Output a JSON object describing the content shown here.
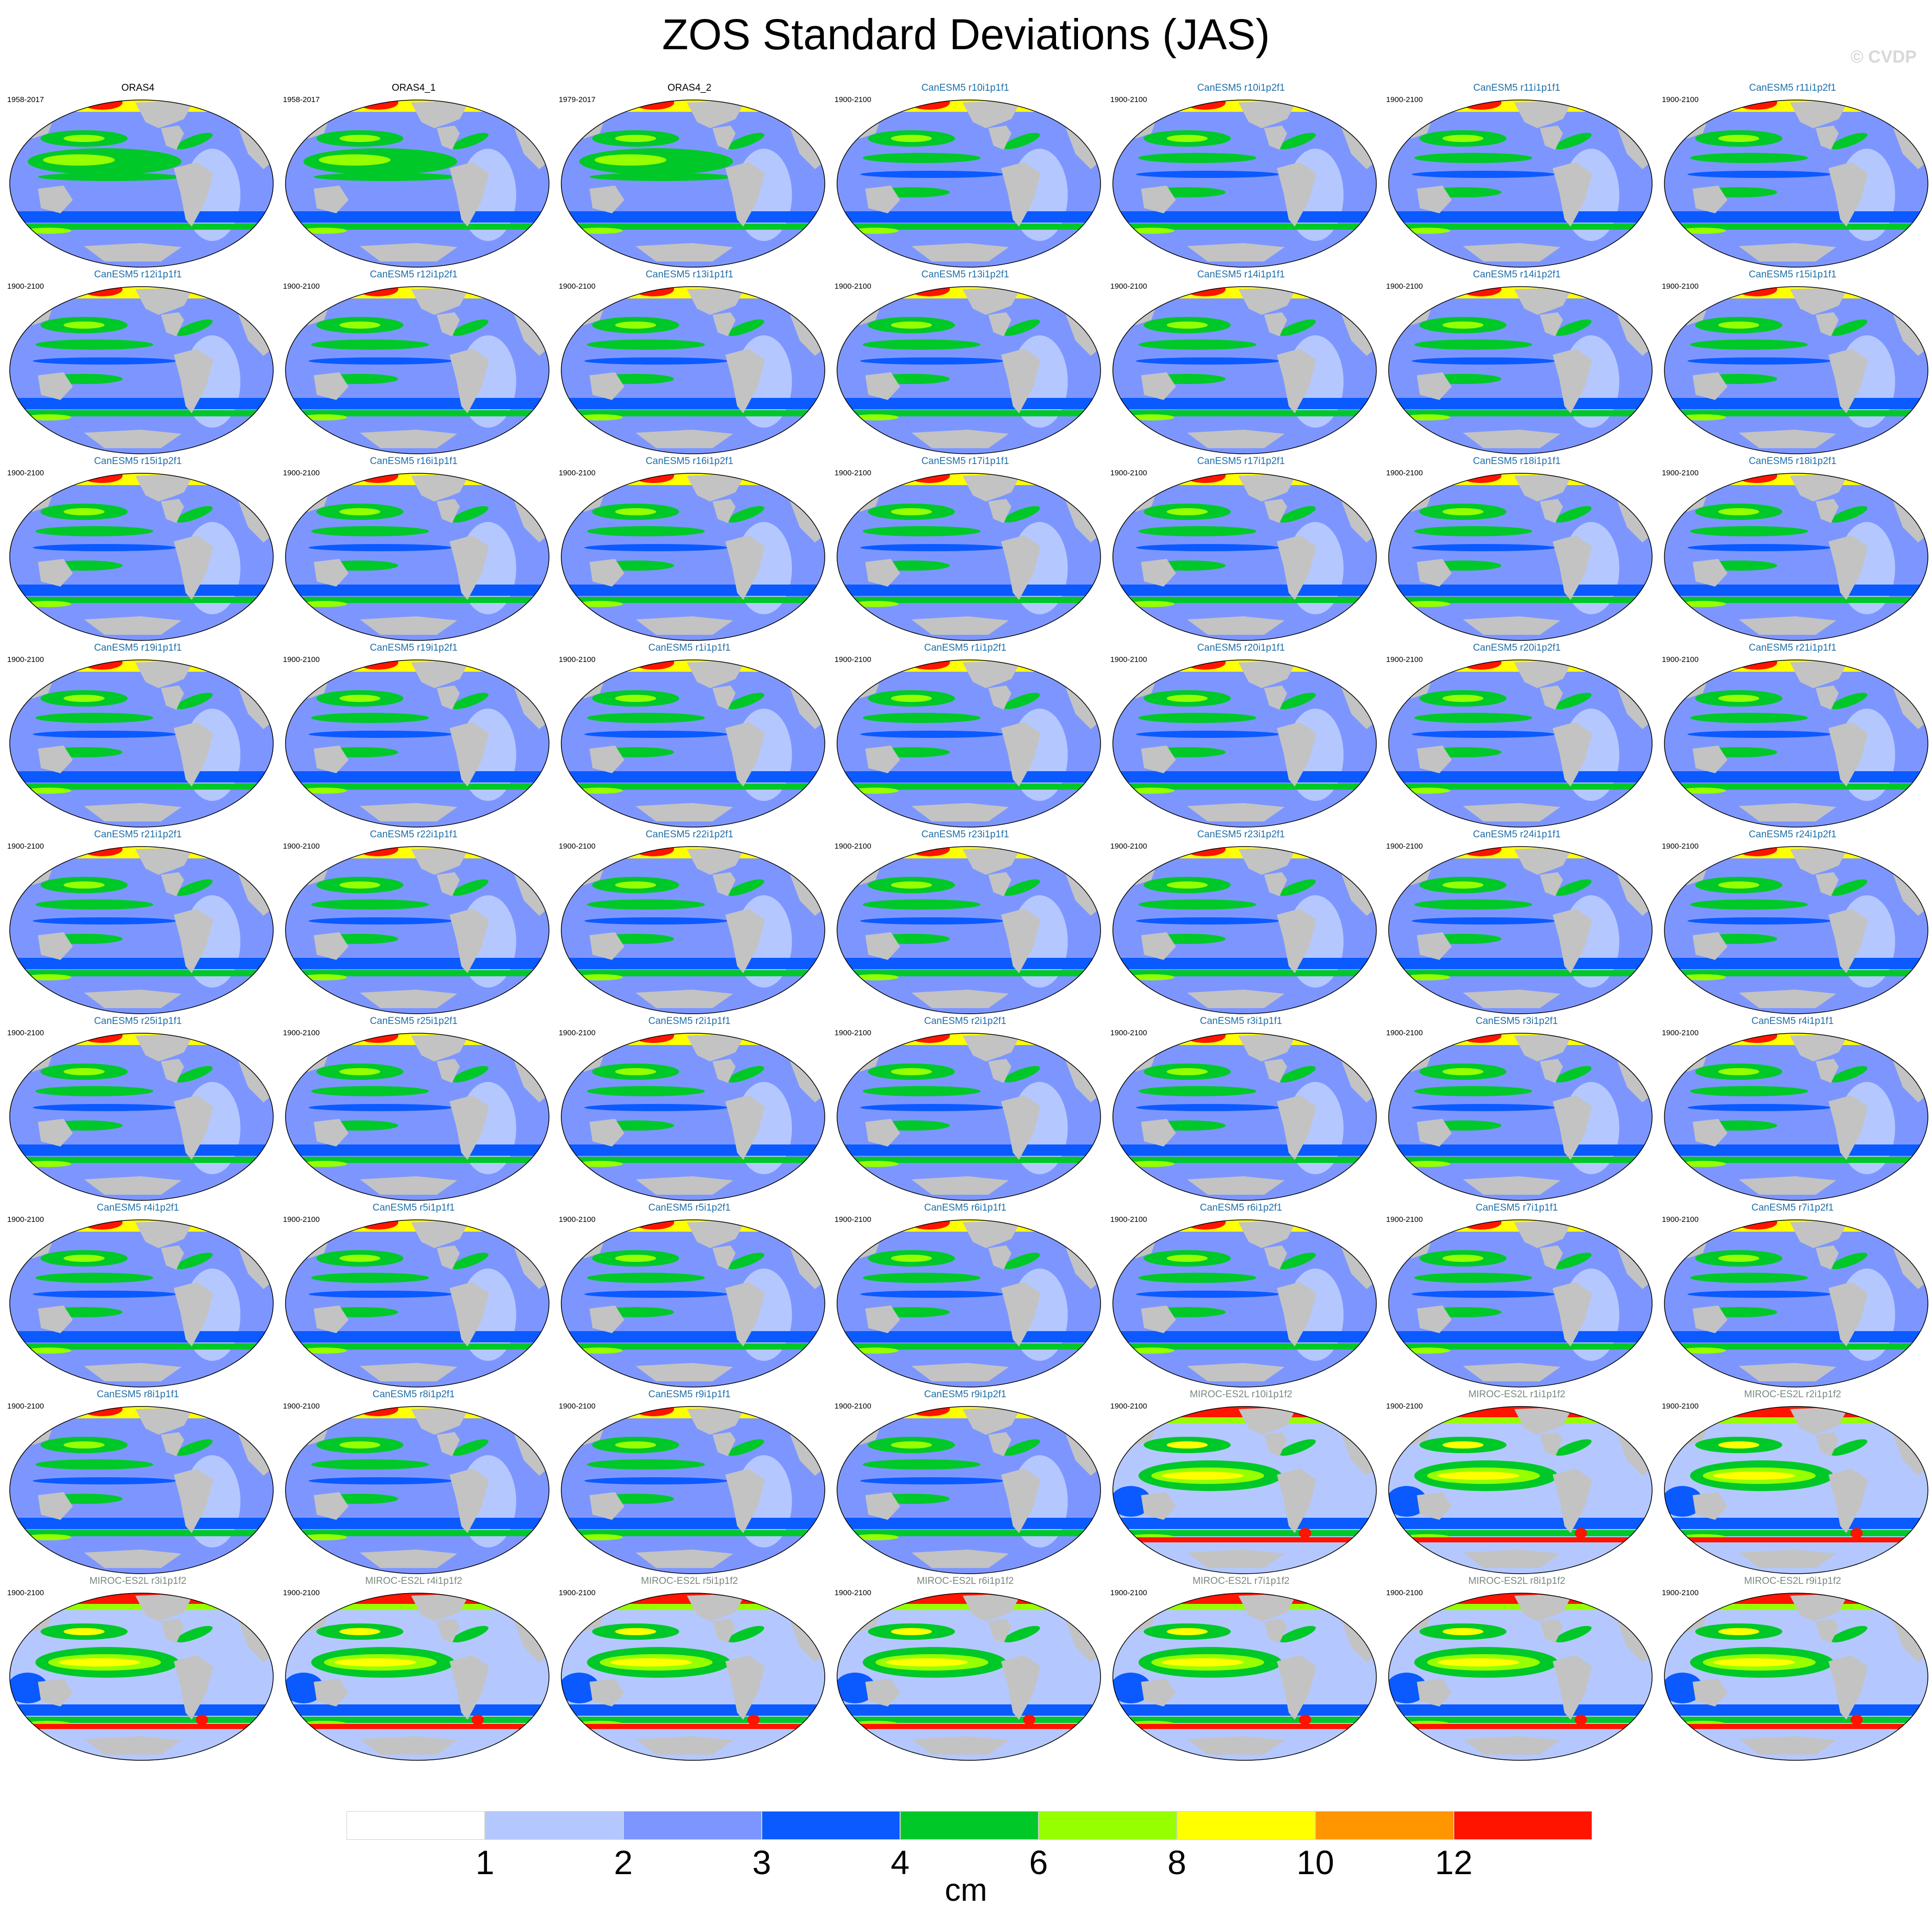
{
  "title": "ZOS Standard Deviations (JAS)",
  "credit": "© CVDP",
  "units": "cm",
  "colors": {
    "levels": [
      "#ffffff",
      "#b4c8ff",
      "#7d96ff",
      "#0a5aff",
      "#00c828",
      "#96ff00",
      "#ffff00",
      "#ff9600",
      "#ff1400"
    ],
    "land": "#c3c3c3",
    "title_obs": "#000000",
    "title_canesm5": "#1f6fa8",
    "title_miroc": "#7a8a80"
  },
  "colorbar_ticks": [
    "1",
    "2",
    "3",
    "4",
    "6",
    "8",
    "10",
    "12"
  ],
  "panels": [
    {
      "title": "ORAS4",
      "period": "1958-2017",
      "group": "obs"
    },
    {
      "title": "ORAS4_1",
      "period": "1958-2017",
      "group": "obs"
    },
    {
      "title": "ORAS4_2",
      "period": "1979-2017",
      "group": "obs"
    },
    {
      "title": "CanESM5 r10i1p1f1",
      "period": "1900-2100",
      "group": "canesm5"
    },
    {
      "title": "CanESM5 r10i1p2f1",
      "period": "1900-2100",
      "group": "canesm5"
    },
    {
      "title": "CanESM5 r11i1p1f1",
      "period": "1900-2100",
      "group": "canesm5"
    },
    {
      "title": "CanESM5 r11i1p2f1",
      "period": "1900-2100",
      "group": "canesm5"
    },
    {
      "title": "CanESM5 r12i1p1f1",
      "period": "1900-2100",
      "group": "canesm5"
    },
    {
      "title": "CanESM5 r12i1p2f1",
      "period": "1900-2100",
      "group": "canesm5"
    },
    {
      "title": "CanESM5 r13i1p1f1",
      "period": "1900-2100",
      "group": "canesm5"
    },
    {
      "title": "CanESM5 r13i1p2f1",
      "period": "1900-2100",
      "group": "canesm5"
    },
    {
      "title": "CanESM5 r14i1p1f1",
      "period": "1900-2100",
      "group": "canesm5"
    },
    {
      "title": "CanESM5 r14i1p2f1",
      "period": "1900-2100",
      "group": "canesm5"
    },
    {
      "title": "CanESM5 r15i1p1f1",
      "period": "1900-2100",
      "group": "canesm5"
    },
    {
      "title": "CanESM5 r15i1p2f1",
      "period": "1900-2100",
      "group": "canesm5"
    },
    {
      "title": "CanESM5 r16i1p1f1",
      "period": "1900-2100",
      "group": "canesm5"
    },
    {
      "title": "CanESM5 r16i1p2f1",
      "period": "1900-2100",
      "group": "canesm5"
    },
    {
      "title": "CanESM5 r17i1p1f1",
      "period": "1900-2100",
      "group": "canesm5"
    },
    {
      "title": "CanESM5 r17i1p2f1",
      "period": "1900-2100",
      "group": "canesm5"
    },
    {
      "title": "CanESM5 r18i1p1f1",
      "period": "1900-2100",
      "group": "canesm5"
    },
    {
      "title": "CanESM5 r18i1p2f1",
      "period": "1900-2100",
      "group": "canesm5"
    },
    {
      "title": "CanESM5 r19i1p1f1",
      "period": "1900-2100",
      "group": "canesm5"
    },
    {
      "title": "CanESM5 r19i1p2f1",
      "period": "1900-2100",
      "group": "canesm5"
    },
    {
      "title": "CanESM5 r1i1p1f1",
      "period": "1900-2100",
      "group": "canesm5"
    },
    {
      "title": "CanESM5 r1i1p2f1",
      "period": "1900-2100",
      "group": "canesm5"
    },
    {
      "title": "CanESM5 r20i1p1f1",
      "period": "1900-2100",
      "group": "canesm5"
    },
    {
      "title": "CanESM5 r20i1p2f1",
      "period": "1900-2100",
      "group": "canesm5"
    },
    {
      "title": "CanESM5 r21i1p1f1",
      "period": "1900-2100",
      "group": "canesm5"
    },
    {
      "title": "CanESM5 r21i1p2f1",
      "period": "1900-2100",
      "group": "canesm5"
    },
    {
      "title": "CanESM5 r22i1p1f1",
      "period": "1900-2100",
      "group": "canesm5"
    },
    {
      "title": "CanESM5 r22i1p2f1",
      "period": "1900-2100",
      "group": "canesm5"
    },
    {
      "title": "CanESM5 r23i1p1f1",
      "period": "1900-2100",
      "group": "canesm5"
    },
    {
      "title": "CanESM5 r23i1p2f1",
      "period": "1900-2100",
      "group": "canesm5"
    },
    {
      "title": "CanESM5 r24i1p1f1",
      "period": "1900-2100",
      "group": "canesm5"
    },
    {
      "title": "CanESM5 r24i1p2f1",
      "period": "1900-2100",
      "group": "canesm5"
    },
    {
      "title": "CanESM5 r25i1p1f1",
      "period": "1900-2100",
      "group": "canesm5"
    },
    {
      "title": "CanESM5 r25i1p2f1",
      "period": "1900-2100",
      "group": "canesm5"
    },
    {
      "title": "CanESM5 r2i1p1f1",
      "period": "1900-2100",
      "group": "canesm5"
    },
    {
      "title": "CanESM5 r2i1p2f1",
      "period": "1900-2100",
      "group": "canesm5"
    },
    {
      "title": "CanESM5 r3i1p1f1",
      "period": "1900-2100",
      "group": "canesm5"
    },
    {
      "title": "CanESM5 r3i1p2f1",
      "period": "1900-2100",
      "group": "canesm5"
    },
    {
      "title": "CanESM5 r4i1p1f1",
      "period": "1900-2100",
      "group": "canesm5"
    },
    {
      "title": "CanESM5 r4i1p2f1",
      "period": "1900-2100",
      "group": "canesm5"
    },
    {
      "title": "CanESM5 r5i1p1f1",
      "period": "1900-2100",
      "group": "canesm5"
    },
    {
      "title": "CanESM5 r5i1p2f1",
      "period": "1900-2100",
      "group": "canesm5"
    },
    {
      "title": "CanESM5 r6i1p1f1",
      "period": "1900-2100",
      "group": "canesm5"
    },
    {
      "title": "CanESM5 r6i1p2f1",
      "period": "1900-2100",
      "group": "canesm5"
    },
    {
      "title": "CanESM5 r7i1p1f1",
      "period": "1900-2100",
      "group": "canesm5"
    },
    {
      "title": "CanESM5 r7i1p2f1",
      "period": "1900-2100",
      "group": "canesm5"
    },
    {
      "title": "CanESM5 r8i1p1f1",
      "period": "1900-2100",
      "group": "canesm5"
    },
    {
      "title": "CanESM5 r8i1p2f1",
      "period": "1900-2100",
      "group": "canesm5"
    },
    {
      "title": "CanESM5 r9i1p1f1",
      "period": "1900-2100",
      "group": "canesm5"
    },
    {
      "title": "CanESM5 r9i1p2f1",
      "period": "1900-2100",
      "group": "canesm5"
    },
    {
      "title": "MIROC-ES2L r10i1p1f2",
      "period": "1900-2100",
      "group": "miroc"
    },
    {
      "title": "MIROC-ES2L r1i1p1f2",
      "period": "1900-2100",
      "group": "miroc"
    },
    {
      "title": "MIROC-ES2L r2i1p1f2",
      "period": "1900-2100",
      "group": "miroc"
    },
    {
      "title": "MIROC-ES2L r3i1p1f2",
      "period": "1900-2100",
      "group": "miroc"
    },
    {
      "title": "MIROC-ES2L r4i1p1f2",
      "period": "1900-2100",
      "group": "miroc"
    },
    {
      "title": "MIROC-ES2L r5i1p1f2",
      "period": "1900-2100",
      "group": "miroc"
    },
    {
      "title": "MIROC-ES2L r6i1p1f2",
      "period": "1900-2100",
      "group": "miroc"
    },
    {
      "title": "MIROC-ES2L r7i1p1f2",
      "period": "1900-2100",
      "group": "miroc"
    },
    {
      "title": "MIROC-ES2L r8i1p1f2",
      "period": "1900-2100",
      "group": "miroc"
    },
    {
      "title": "MIROC-ES2L r9i1p1f2",
      "period": "1900-2100",
      "group": "miroc"
    }
  ]
}
